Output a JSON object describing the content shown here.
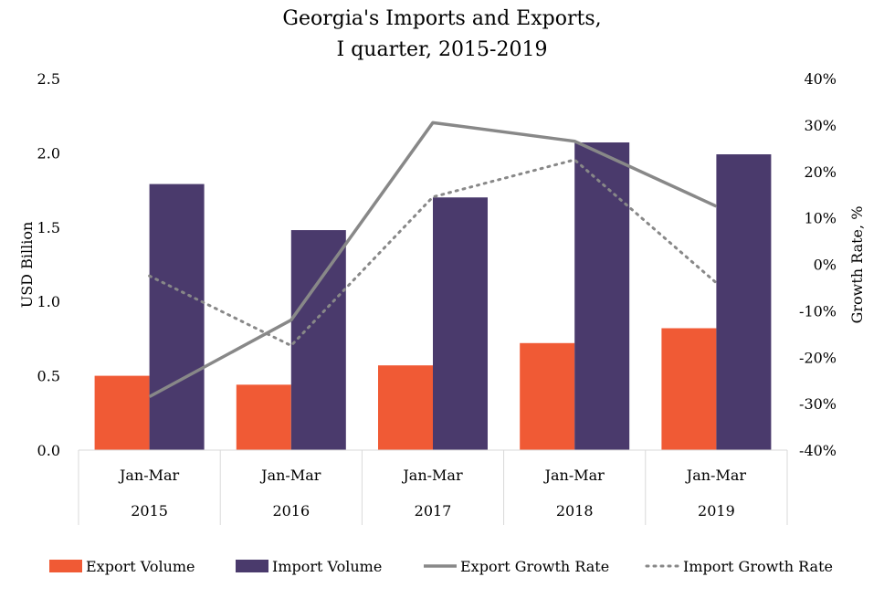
{
  "chart_data": {
    "type": "bar",
    "title_line1": "Georgia's Imports and Exports,",
    "title_line2": "I quarter, 2015-2019",
    "categories": [
      {
        "period": "Jan-Mar",
        "year": "2015"
      },
      {
        "period": "Jan-Mar",
        "year": "2016"
      },
      {
        "period": "Jan-Mar",
        "year": "2017"
      },
      {
        "period": "Jan-Mar",
        "year": "2018"
      },
      {
        "period": "Jan-Mar",
        "year": "2019"
      }
    ],
    "ylabel": "USD Billion",
    "y2label": "Growth Rate, %",
    "ylim": [
      0,
      2.5
    ],
    "y2lim": [
      -40,
      40
    ],
    "y_ticks": [
      "0.0",
      "0.5",
      "1.0",
      "1.5",
      "2.0",
      "2.5"
    ],
    "y2_ticks": [
      "-40%",
      "-30%",
      "-20%",
      "-10%",
      "0%",
      "10%",
      "20%",
      "30%",
      "40%"
    ],
    "bar_series": [
      {
        "name": "Export Volume",
        "color": "#F05A35",
        "values": [
          0.5,
          0.44,
          0.57,
          0.72,
          0.82
        ]
      },
      {
        "name": "Import Volume",
        "color": "#4A3A6C",
        "values": [
          1.79,
          1.48,
          1.7,
          2.07,
          1.99
        ]
      }
    ],
    "line_series": [
      {
        "name": "Export Growth Rate",
        "color": "#888888",
        "style": "solid",
        "values": [
          -28.5,
          -12,
          30.5,
          26.5,
          12.5
        ]
      },
      {
        "name": "Import Growth Rate",
        "color": "#888888",
        "style": "dotted",
        "values": [
          -2.5,
          -17.5,
          14.5,
          22.5,
          -4
        ]
      }
    ],
    "legend_position": "bottom",
    "grid": false
  }
}
